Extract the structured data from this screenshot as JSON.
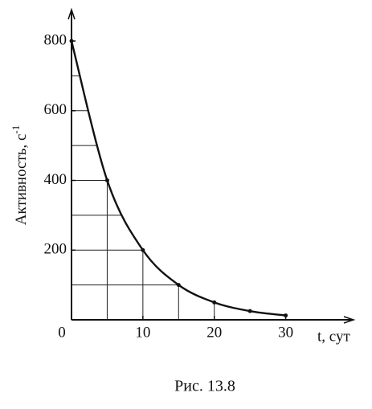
{
  "chart_data": {
    "type": "line",
    "ylabel": "Активность, с",
    "ylabel_exponent": "-1",
    "xlabel": "t, сут",
    "caption": "Рис. 13.8",
    "x": [
      0,
      5,
      10,
      15,
      20,
      25,
      30
    ],
    "series": [
      {
        "color": "#111111",
        "values": [
          800,
          400,
          200,
          100,
          50,
          25,
          12.5
        ]
      }
    ],
    "xlim": [
      0,
      39.5
    ],
    "ylim": [
      0,
      890
    ],
    "xticks": [
      0,
      10,
      20,
      30
    ],
    "yticks": [
      200,
      400,
      600,
      800
    ],
    "minor_xticks": [
      5,
      10,
      15,
      20
    ],
    "minor_yticks": [
      100,
      200,
      300,
      400,
      500,
      600,
      700
    ],
    "grid": true
  }
}
